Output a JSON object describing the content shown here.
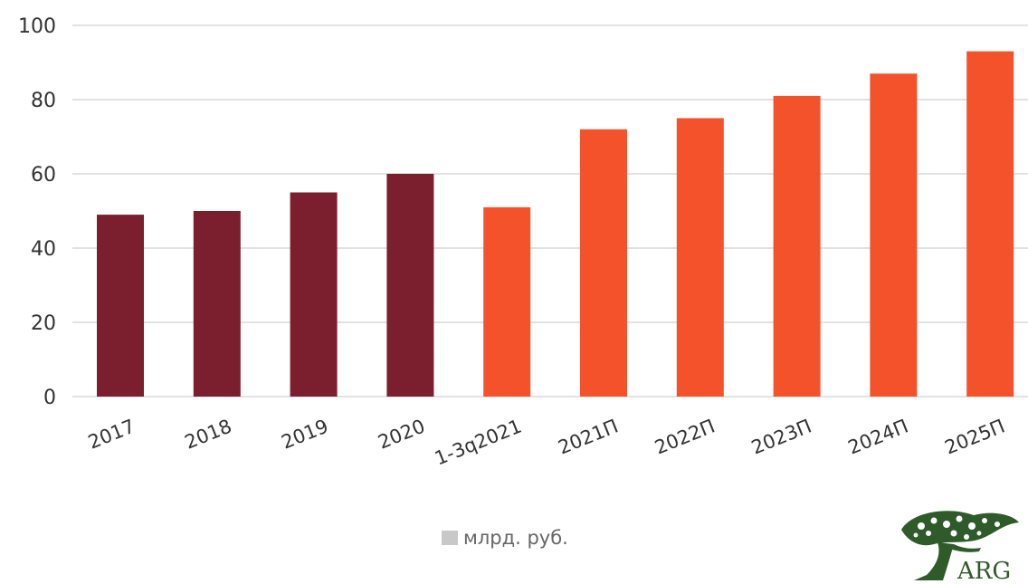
{
  "chart_data": {
    "type": "bar",
    "categories": [
      "2017",
      "2018",
      "2019",
      "2020",
      "1-3q2021",
      "2021П",
      "2022П",
      "2023П",
      "2024П",
      "2025П"
    ],
    "values": [
      49,
      50,
      55,
      60,
      51,
      72,
      75,
      81,
      87,
      93
    ],
    "bar_colors": [
      "#7b1e2e",
      "#7b1e2e",
      "#7b1e2e",
      "#7b1e2e",
      "#f4522b",
      "#f4522b",
      "#f4522b",
      "#f4522b",
      "#f4522b",
      "#f4522b"
    ],
    "ylim": [
      0,
      100
    ],
    "yticks": [
      0,
      20,
      40,
      60,
      80,
      100
    ],
    "grid": true,
    "legend": {
      "label": "млрд. руб.",
      "position": "bottom",
      "color": "#c8c8c8"
    }
  },
  "logo": {
    "text": "ARG"
  }
}
